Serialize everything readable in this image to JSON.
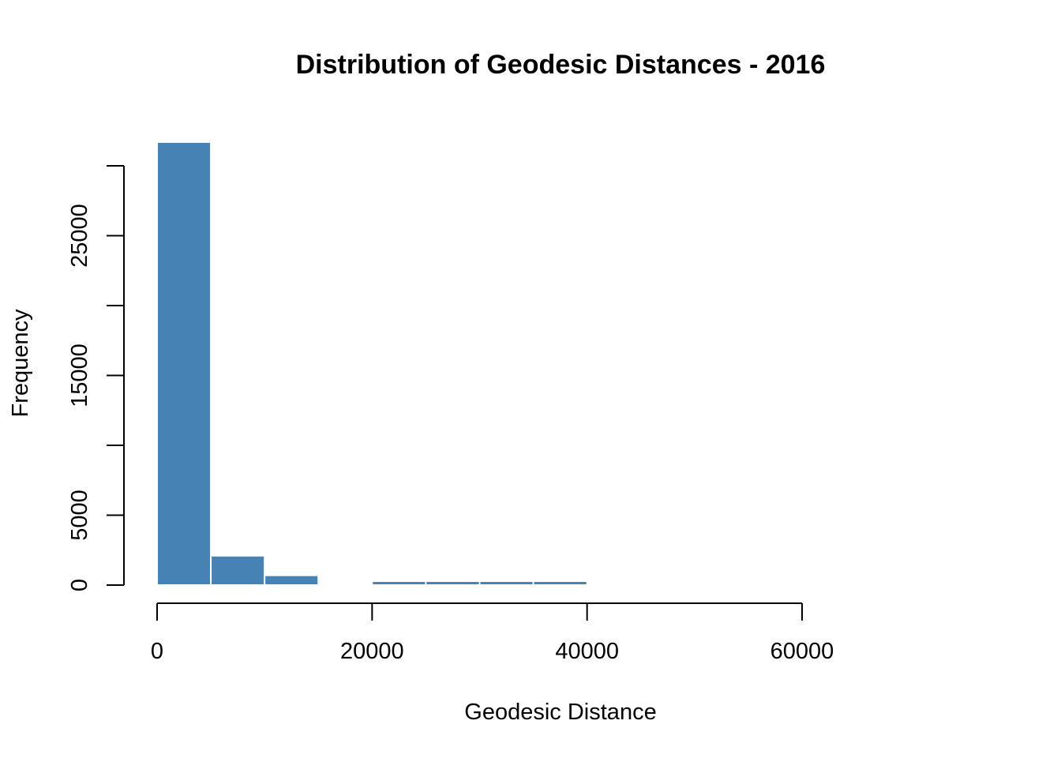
{
  "chart_data": {
    "type": "bar",
    "title": "Distribution of Geodesic Distances - 2016",
    "xlabel": "Geodesic Distance",
    "ylabel": "Frequency",
    "bins": [
      {
        "x0": 0,
        "x1": 5000,
        "count": 31700
      },
      {
        "x0": 5000,
        "x1": 10000,
        "count": 2100
      },
      {
        "x0": 10000,
        "x1": 15000,
        "count": 700
      },
      {
        "x0": 15000,
        "x1": 20000,
        "count": 0
      },
      {
        "x0": 20000,
        "x1": 25000,
        "count": 280
      },
      {
        "x0": 25000,
        "x1": 30000,
        "count": 280
      },
      {
        "x0": 30000,
        "x1": 35000,
        "count": 280
      },
      {
        "x0": 35000,
        "x1": 40000,
        "count": 280
      }
    ],
    "xlim": [
      0,
      60000
    ],
    "ylim": [
      0,
      30000
    ],
    "xticks": [
      0,
      20000,
      40000,
      60000
    ],
    "xtick_labels": [
      "0",
      "20000",
      "40000",
      "60000"
    ],
    "yticks": [
      0,
      5000,
      10000,
      15000,
      20000,
      25000,
      30000
    ],
    "ytick_labels": [
      "0",
      "",
      "",
      "15000",
      "",
      "25000",
      ""
    ],
    "ytick_labels_extra": {
      "5000": "5000"
    },
    "bar_color": "#4682B4",
    "grid": false,
    "legend": "none"
  }
}
